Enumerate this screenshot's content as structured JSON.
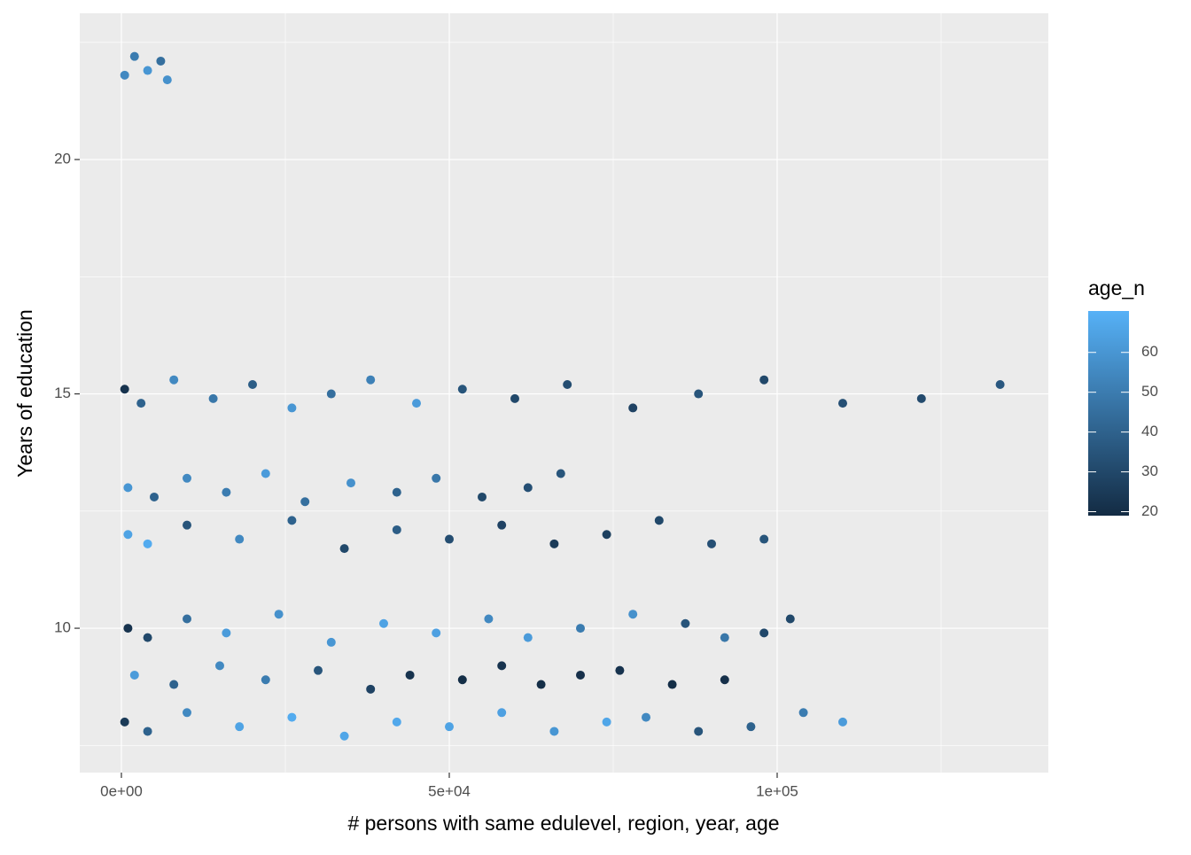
{
  "chart_data": {
    "type": "scatter",
    "x_label": "# persons with same edulevel, region, year, age",
    "y_label": "Years of education",
    "xlim": [
      -6351,
      141351
    ],
    "ylim": [
      6.92,
      23.12
    ],
    "xticks": [
      {
        "value": 0,
        "label": "0e+00"
      },
      {
        "value": 50000,
        "label": "5e+04"
      },
      {
        "value": 100000,
        "label": "1e+05"
      }
    ],
    "xminorticks": [
      25000,
      75000,
      125000
    ],
    "yticks": [
      10,
      15,
      20
    ],
    "yminorticks": [
      7.5,
      12.5,
      17.5,
      22.5
    ],
    "grid": true,
    "color_title": "age_n",
    "color_lim": [
      19,
      70.4
    ],
    "color_ticks": [
      20,
      30,
      40,
      50,
      60
    ],
    "color_low": "#132B43",
    "color_high": "#56B1F7",
    "x": [
      500,
      2000,
      4000,
      6000,
      7000,
      500,
      3000,
      8000,
      14000,
      20000,
      26000,
      32000,
      38000,
      45000,
      52000,
      60000,
      68000,
      78000,
      88000,
      98000,
      110000,
      122000,
      134000,
      1000,
      5000,
      10000,
      16000,
      22000,
      28000,
      35000,
      42000,
      48000,
      55000,
      62000,
      67000,
      1000,
      4000,
      10000,
      18000,
      26000,
      34000,
      42000,
      50000,
      58000,
      66000,
      74000,
      82000,
      90000,
      98000,
      1000,
      4000,
      10000,
      16000,
      24000,
      32000,
      40000,
      48000,
      56000,
      62000,
      70000,
      78000,
      86000,
      92000,
      98000,
      102000,
      2000,
      8000,
      15000,
      22000,
      30000,
      38000,
      44000,
      52000,
      58000,
      64000,
      70000,
      76000,
      84000,
      92000,
      500,
      4000,
      10000,
      18000,
      26000,
      34000,
      42000,
      50000,
      58000,
      66000,
      74000,
      80000,
      88000,
      96000,
      104000,
      110000
    ],
    "y": [
      21.8,
      22.2,
      21.9,
      22.1,
      21.7,
      15.1,
      14.8,
      15.3,
      14.9,
      15.2,
      14.7,
      15.0,
      15.3,
      14.8,
      15.1,
      14.9,
      15.2,
      14.7,
      15.0,
      15.3,
      14.8,
      14.9,
      15.2,
      13.0,
      12.8,
      13.2,
      12.9,
      13.3,
      12.7,
      13.1,
      12.9,
      13.2,
      12.8,
      13.0,
      13.3,
      12.0,
      11.8,
      12.2,
      11.9,
      12.3,
      11.7,
      12.1,
      11.9,
      12.2,
      11.8,
      12.0,
      12.3,
      11.8,
      11.9,
      10.0,
      9.8,
      10.2,
      9.9,
      10.3,
      9.7,
      10.1,
      9.9,
      10.2,
      9.8,
      10.0,
      10.3,
      10.1,
      9.8,
      9.9,
      10.2,
      9.0,
      8.8,
      9.2,
      8.9,
      9.1,
      8.7,
      9.0,
      8.9,
      9.2,
      8.8,
      9.0,
      9.1,
      8.8,
      8.9,
      8.0,
      7.8,
      8.2,
      7.9,
      8.1,
      7.7,
      8.0,
      7.9,
      8.2,
      7.8,
      8.0,
      8.1,
      7.8,
      7.9,
      8.2,
      8.0
    ],
    "color_values": [
      55,
      50,
      60,
      45,
      58,
      22,
      40,
      55,
      48,
      38,
      60,
      45,
      52,
      62,
      35,
      30,
      32,
      28,
      35,
      30,
      33,
      31,
      36,
      60,
      40,
      55,
      50,
      62,
      45,
      58,
      40,
      48,
      30,
      33,
      35,
      65,
      68,
      35,
      55,
      40,
      30,
      38,
      32,
      28,
      25,
      27,
      30,
      33,
      35,
      22,
      30,
      45,
      62,
      58,
      60,
      65,
      64,
      55,
      62,
      50,
      58,
      35,
      48,
      30,
      30,
      62,
      40,
      55,
      50,
      35,
      28,
      22,
      20,
      22,
      20,
      21,
      22,
      20,
      21,
      25,
      40,
      55,
      65,
      68,
      66,
      67,
      65,
      64,
      60,
      66,
      55,
      35,
      40,
      50,
      62
    ]
  }
}
